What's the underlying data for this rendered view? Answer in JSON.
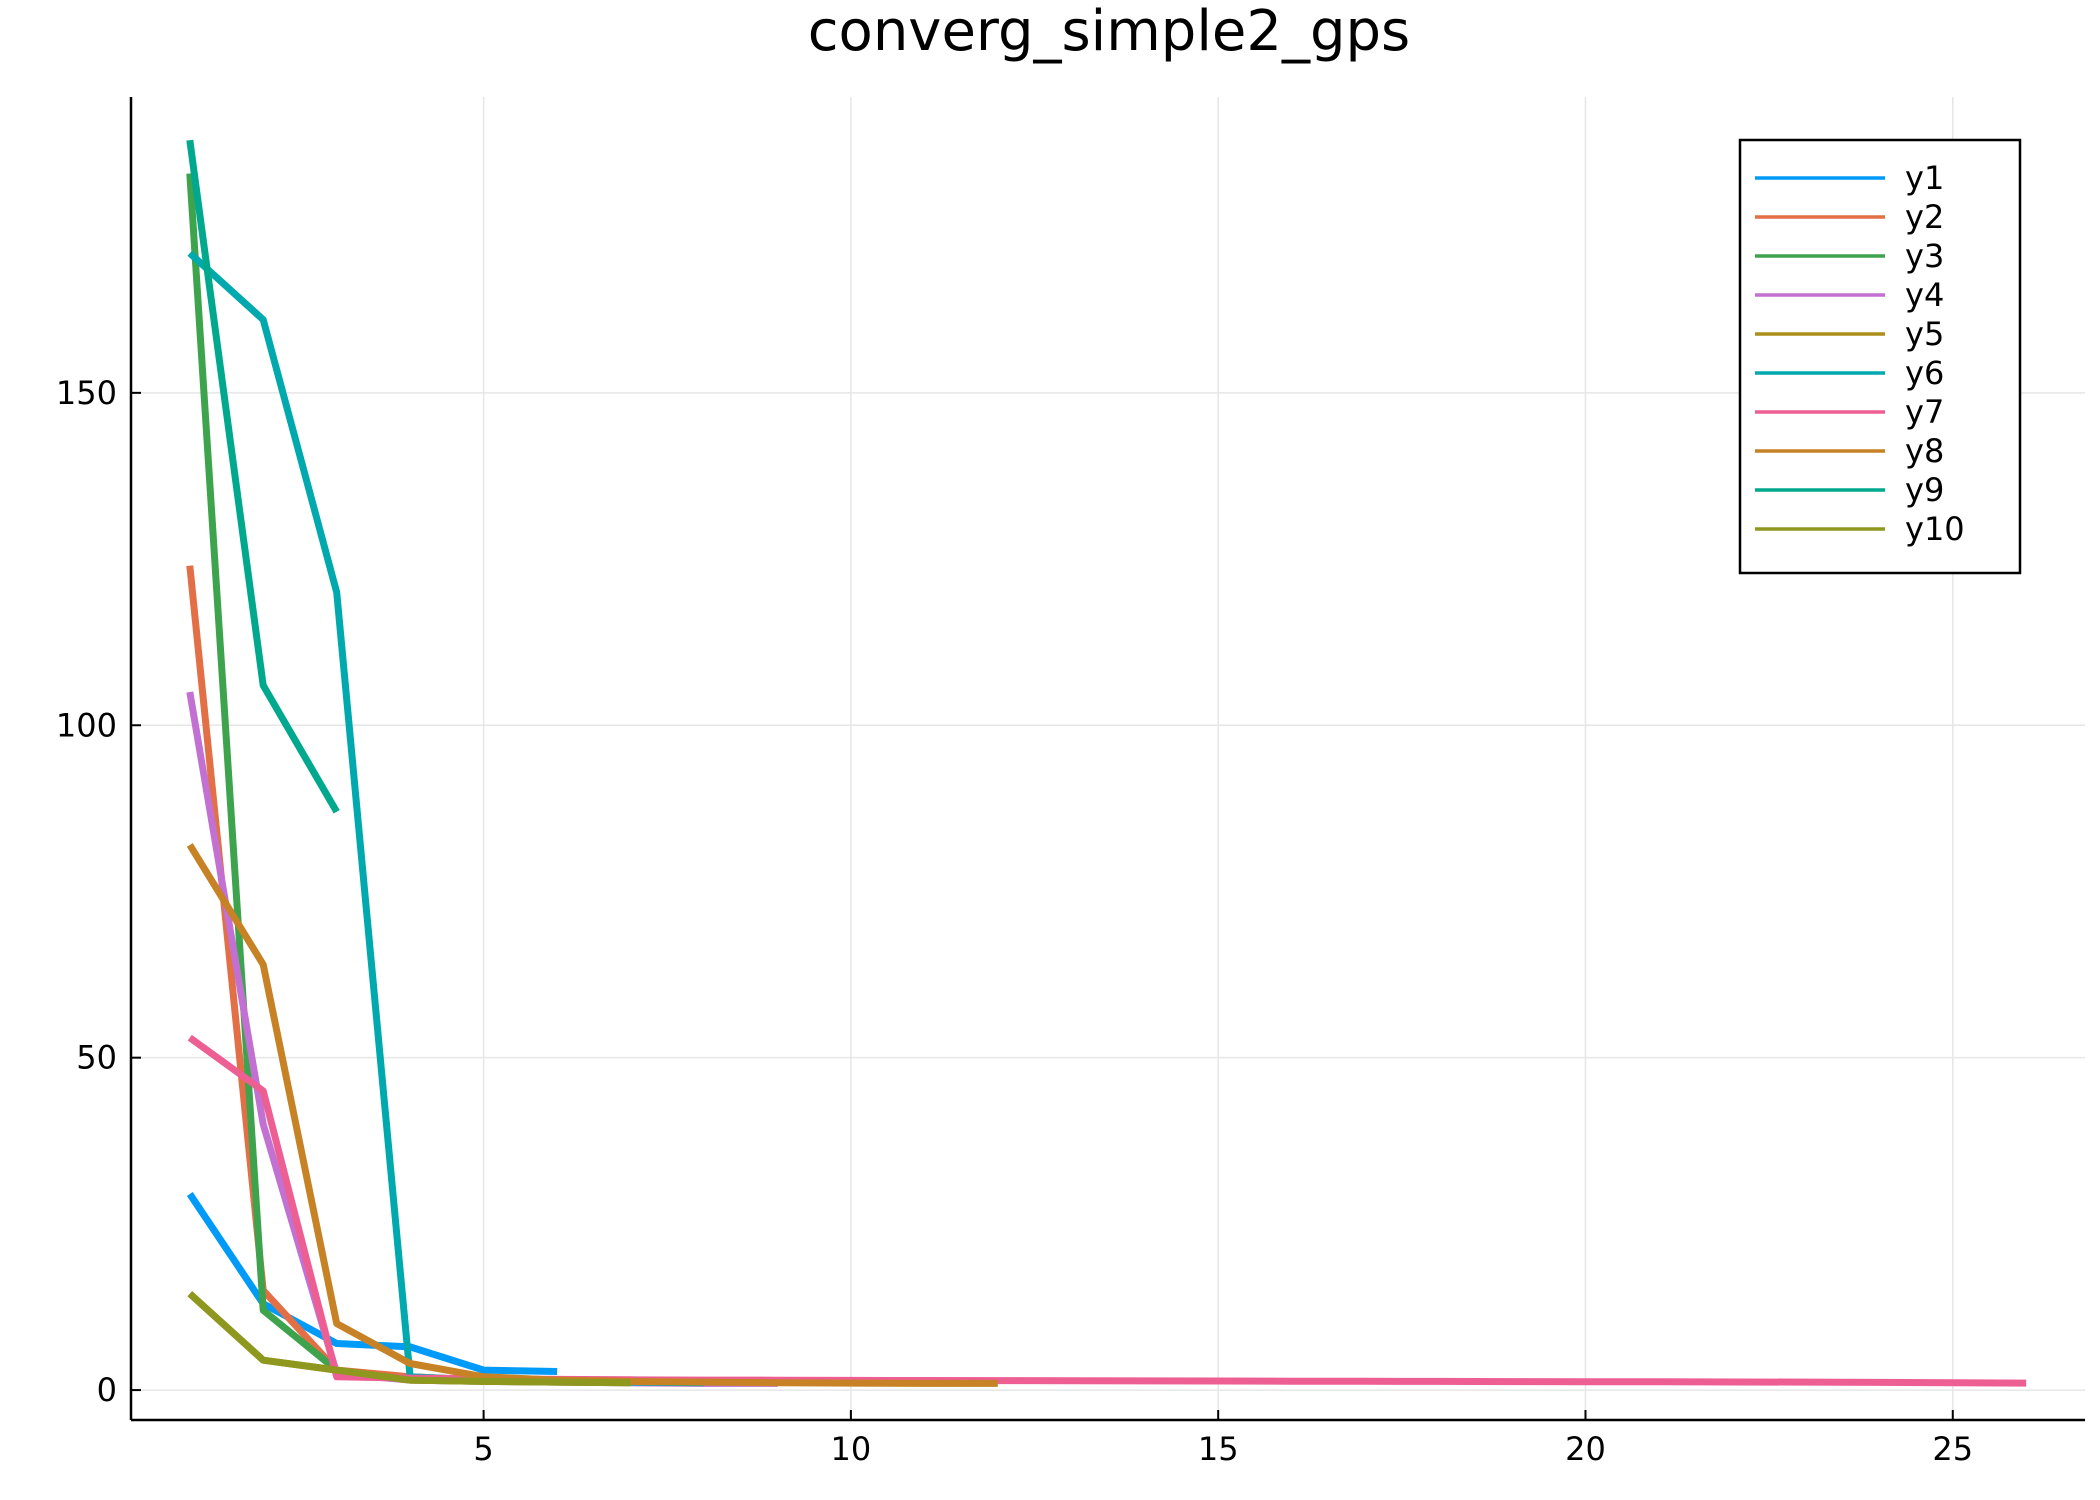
{
  "chart_data": {
    "type": "line",
    "title": "converg_simple2_gps",
    "xlabel": "",
    "ylabel": "",
    "xlim": [
      0.2,
      26.8
    ],
    "ylim": [
      -4.5,
      194.5
    ],
    "xticks": [
      5,
      10,
      15,
      20,
      25
    ],
    "yticks": [
      0,
      50,
      100,
      150
    ],
    "grid": true,
    "legend_position": "top-right",
    "series": [
      {
        "name": "y1",
        "color": "#009af9",
        "x": [
          1,
          2,
          3,
          4,
          5,
          6
        ],
        "y": [
          29.5,
          13,
          7,
          6.5,
          3,
          2.8
        ]
      },
      {
        "name": "y2",
        "color": "#e26f46",
        "x": [
          1,
          2,
          3,
          4,
          5,
          6,
          7,
          8
        ],
        "y": [
          124,
          15,
          3,
          2,
          1.5,
          1.3,
          1.2,
          1.1
        ]
      },
      {
        "name": "y3",
        "color": "#3da44d",
        "x": [
          1,
          2,
          3
        ],
        "y": [
          183,
          12,
          3
        ]
      },
      {
        "name": "y4",
        "color": "#c271d2",
        "x": [
          1,
          2,
          3,
          4,
          5,
          6,
          7,
          8,
          9
        ],
        "y": [
          105,
          40,
          2.5,
          1.5,
          1.3,
          1.2,
          1.1,
          1.0,
          1.0
        ]
      },
      {
        "name": "y5",
        "color": "#ac8e18",
        "x": [
          1,
          2,
          3,
          4,
          5,
          6,
          7
        ],
        "y": [
          14.5,
          4.5,
          3,
          1.5,
          1.3,
          1.2,
          1.1
        ]
      },
      {
        "name": "y6",
        "color": "#00a9ad",
        "x": [
          1,
          2,
          3,
          4,
          5,
          6,
          7,
          8
        ],
        "y": [
          171,
          161,
          120,
          2,
          1.5,
          1.3,
          1.2,
          1.1
        ]
      },
      {
        "name": "y7",
        "color": "#ed5e93",
        "x": [
          1,
          2,
          3,
          4,
          5,
          6,
          7,
          8,
          9,
          10,
          11,
          12,
          13,
          14,
          15,
          16,
          17,
          18,
          19,
          20,
          21,
          22,
          23,
          24,
          25,
          26
        ],
        "y": [
          53,
          45,
          2,
          1.8,
          1.7,
          1.6,
          1.55,
          1.5,
          1.48,
          1.46,
          1.44,
          1.42,
          1.4,
          1.38,
          1.36,
          1.34,
          1.32,
          1.3,
          1.28,
          1.26,
          1.24,
          1.22,
          1.2,
          1.15,
          1.1,
          1.05
        ]
      },
      {
        "name": "y8",
        "color": "#c68225",
        "x": [
          1,
          2,
          3,
          4,
          5,
          6,
          7,
          8,
          9,
          10,
          11,
          12
        ],
        "y": [
          82,
          64,
          10,
          4,
          2,
          1.5,
          1.3,
          1.2,
          1.1,
          1.05,
          1.0,
          1.0
        ]
      },
      {
        "name": "y9",
        "color": "#00a98d",
        "x": [
          1,
          2,
          3
        ],
        "y": [
          188,
          106,
          87
        ]
      },
      {
        "name": "y10",
        "color": "#8e971e",
        "x": [
          1,
          2,
          3,
          4,
          5,
          6,
          7
        ],
        "y": [
          14.5,
          4.5,
          3,
          1.5,
          1.3,
          1.2,
          1.1
        ]
      }
    ]
  }
}
